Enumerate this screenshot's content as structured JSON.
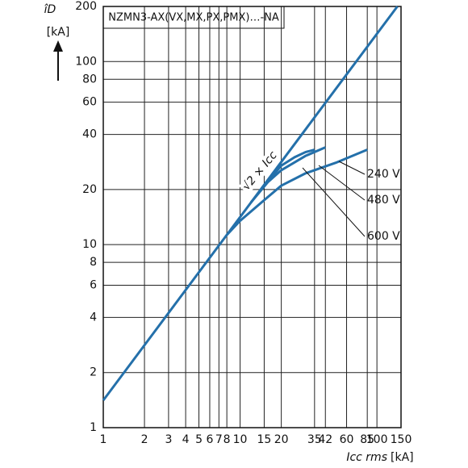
{
  "chart_data": {
    "type": "line",
    "title": "NZMN3-AX(VX,MX,PX,PMX)…-NA",
    "ylabel": "îD",
    "yunit": "[kA]",
    "xlabel": "Icc rms",
    "xunit": "[kA]",
    "xscale": "log",
    "yscale": "log",
    "grid": true,
    "xlim": [
      1,
      150
    ],
    "ylim": [
      1,
      200
    ],
    "xticks": [
      1,
      2,
      3,
      4,
      5,
      6,
      7,
      8,
      10,
      15,
      20,
      35,
      42,
      60,
      85,
      100,
      150
    ],
    "yticks": [
      1,
      2,
      4,
      6,
      8,
      10,
      20,
      40,
      60,
      80,
      100,
      200
    ],
    "series": [
      {
        "name": "√2 × Icc",
        "color": "#2470aa",
        "x": [
          1,
          141
        ],
        "values": [
          1.41,
          200
        ]
      },
      {
        "name": "240 V",
        "color": "#2470aa",
        "x": [
          8,
          10,
          15,
          20,
          30,
          50,
          85
        ],
        "values": [
          11.3,
          13.5,
          17.5,
          21,
          24.5,
          28,
          33
        ]
      },
      {
        "name": "480 V",
        "color": "#2470aa",
        "x": [
          12,
          16,
          20,
          30,
          42
        ],
        "values": [
          17,
          22,
          25.5,
          30.5,
          34
        ]
      },
      {
        "name": "600 V",
        "color": "#2470aa",
        "x": [
          15,
          20,
          25,
          30,
          35
        ],
        "values": [
          21,
          27,
          30,
          32,
          33
        ]
      }
    ]
  }
}
